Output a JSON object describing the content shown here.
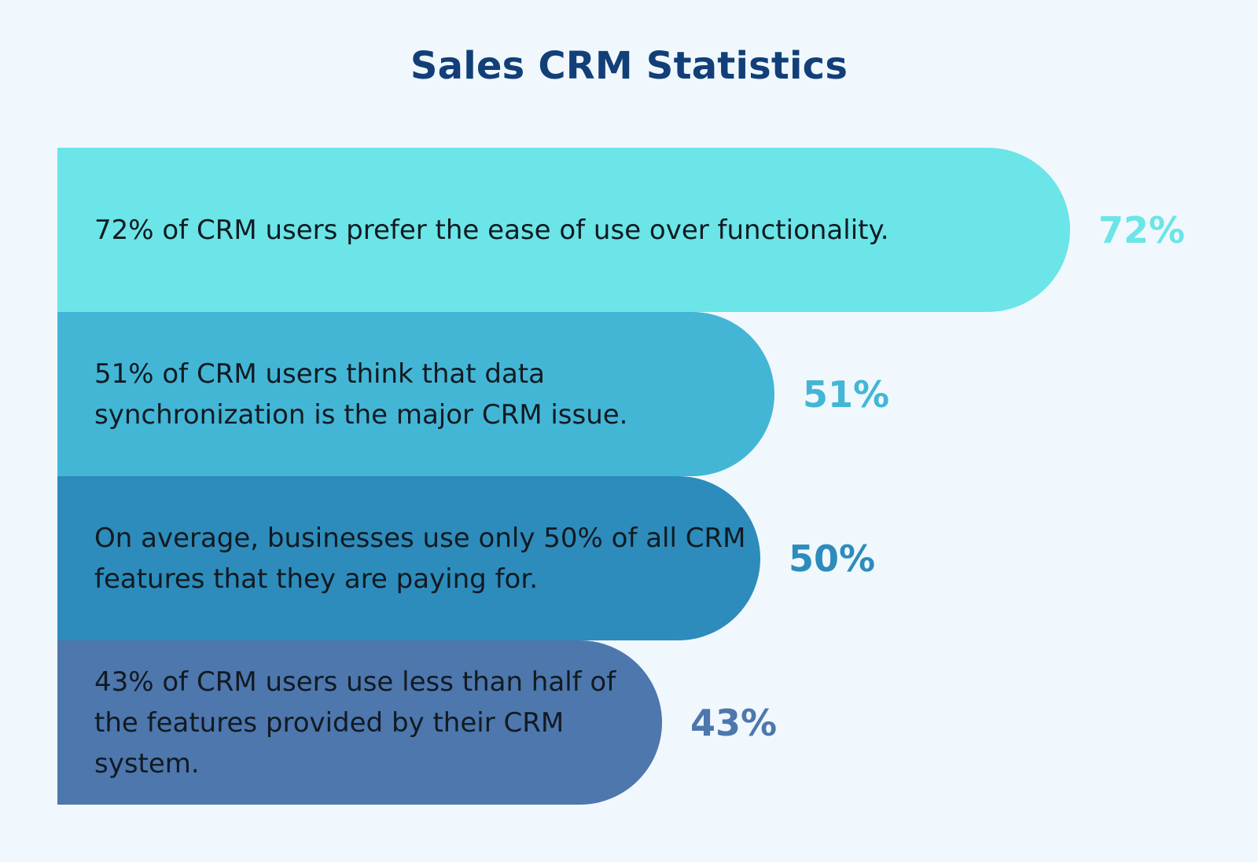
{
  "chart_data": {
    "type": "bar",
    "title": "Sales CRM Statistics",
    "orientation": "horizontal",
    "categories": [
      "72% of CRM users prefer the ease of use over functionality.",
      "51% of CRM users think that data synchronization is the major CRM issue.",
      "On average, businesses use only 50% of all CRM features that they are paying for.",
      "43% of CRM users use less than half of the features provided by their CRM system."
    ],
    "values": [
      72,
      51,
      50,
      43
    ],
    "value_labels": [
      "72%",
      "51%",
      "50%",
      "43%"
    ],
    "colors": [
      "#6be5e7",
      "#43b6d6",
      "#2d8cbb",
      "#4d77ad"
    ],
    "xlim": [
      0,
      80
    ],
    "grid": false,
    "legend": "none"
  }
}
